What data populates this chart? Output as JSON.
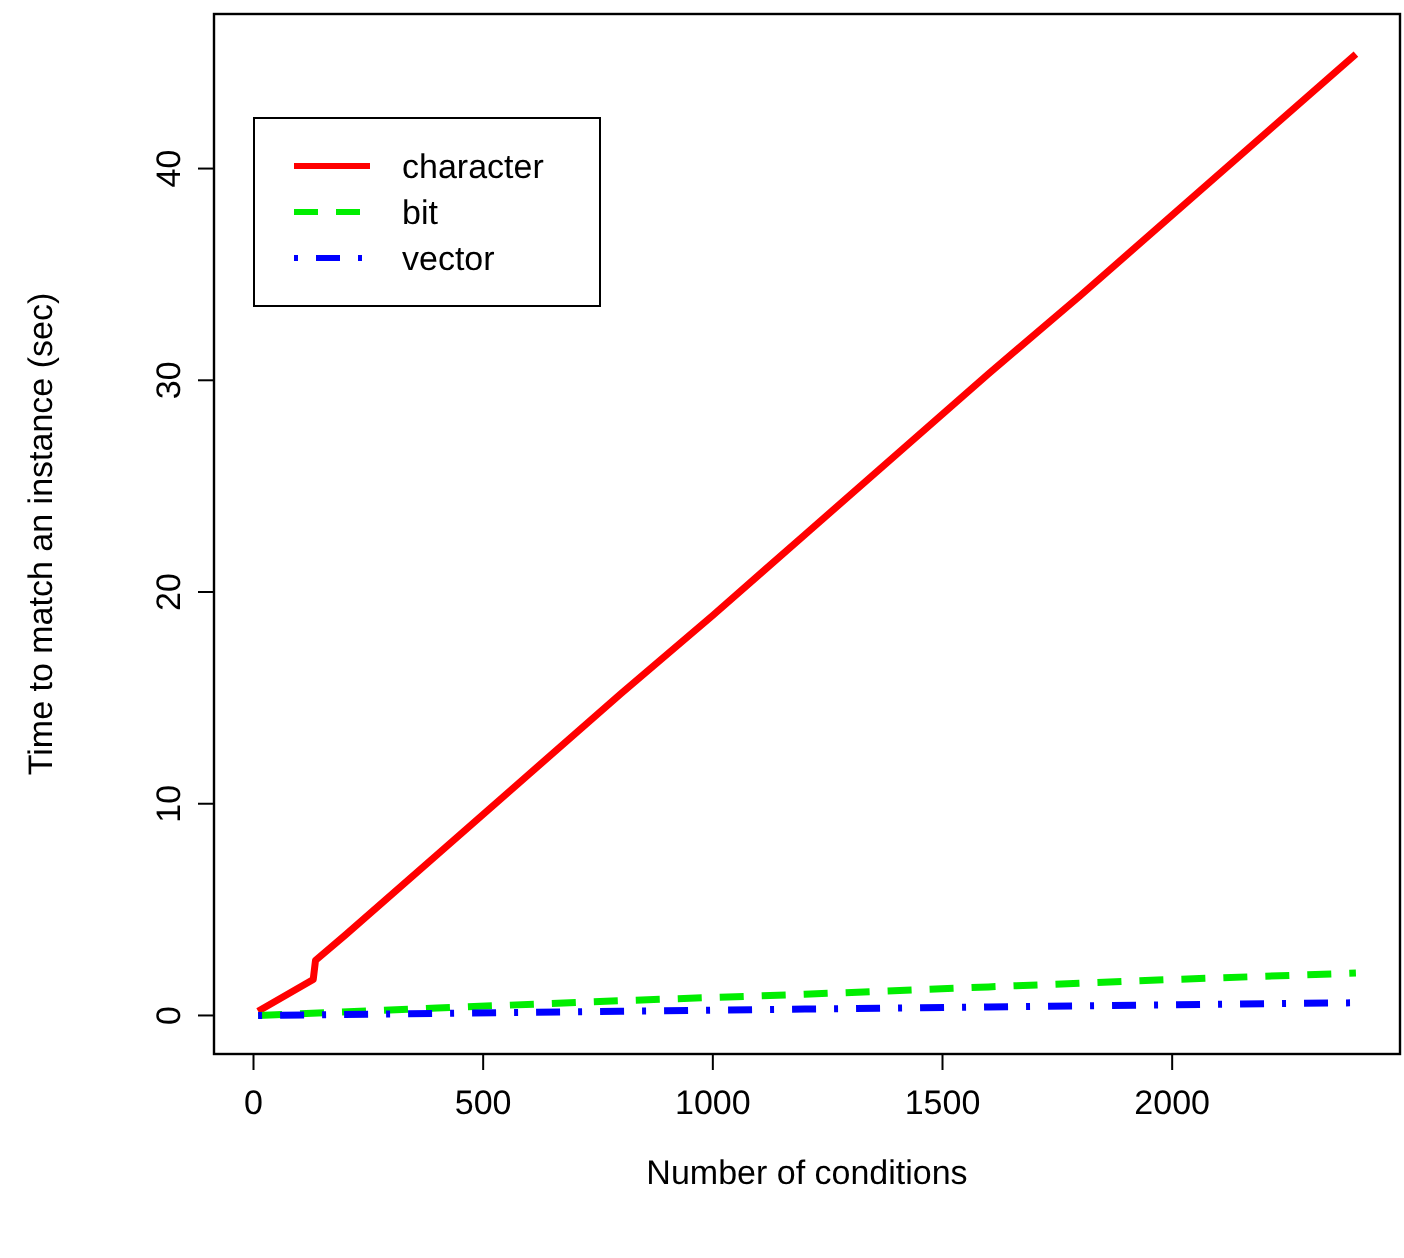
{
  "chart_data": {
    "type": "line",
    "xlabel": "Number of conditions",
    "ylabel": "Time to match an instance (sec)",
    "xlim": [
      -86,
      2496
    ],
    "ylim": [
      -1.82,
      47.3
    ],
    "xticks": [
      0,
      500,
      1000,
      1500,
      2000
    ],
    "yticks": [
      0,
      10,
      20,
      30,
      40
    ],
    "grid": false,
    "legend": "top left",
    "series": [
      {
        "name": "character",
        "color": "#ff0000",
        "line_style": "solid",
        "x": [
          10,
          130,
          135,
          200,
          400,
          600,
          800,
          1000,
          1200,
          1400,
          1600,
          1800,
          2000,
          2200,
          2400
        ],
        "values": [
          0.2,
          1.7,
          2.6,
          3.8,
          7.6,
          11.4,
          15.2,
          18.9,
          22.7,
          26.5,
          30.3,
          34.0,
          37.8,
          41.6,
          45.4
        ]
      },
      {
        "name": "bit",
        "color": "#00ee00",
        "line_style": "dashed",
        "x": [
          10,
          400,
          800,
          1200,
          1600,
          2000,
          2400
        ],
        "values": [
          0,
          0.35,
          0.7,
          1.0,
          1.35,
          1.7,
          2.0
        ]
      },
      {
        "name": "vector",
        "color": "#0000ff",
        "line_style": "dashdot",
        "x": [
          10,
          400,
          800,
          1200,
          1600,
          2000,
          2400
        ],
        "values": [
          0,
          0.1,
          0.2,
          0.3,
          0.4,
          0.5,
          0.6
        ]
      }
    ]
  }
}
